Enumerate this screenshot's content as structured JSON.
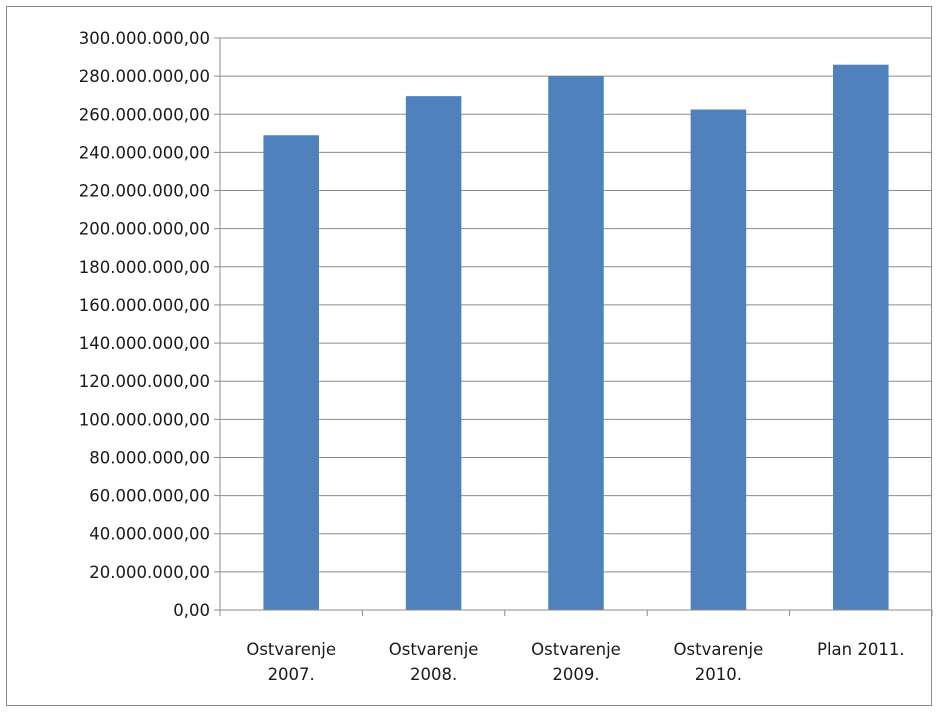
{
  "chart_data": {
    "type": "bar",
    "title": "",
    "xlabel": "",
    "ylabel": "",
    "categories": [
      [
        "Ostvarenje",
        "2007."
      ],
      [
        "Ostvarenje",
        "2008."
      ],
      [
        "Ostvarenje",
        "2009."
      ],
      [
        "Ostvarenje",
        "2010."
      ],
      [
        "Plan 2011."
      ]
    ],
    "values": [
      249000000,
      269500000,
      280000000,
      262500000,
      286000000
    ],
    "ylim": [
      0,
      300000000
    ],
    "ytick_step": 20000000,
    "ytick_labels": [
      "0,00",
      "20.000.000,00",
      "40.000.000,00",
      "60.000.000,00",
      "80.000.000,00",
      "100.000.000,00",
      "120.000.000,00",
      "140.000.000,00",
      "160.000.000,00",
      "180.000.000,00",
      "200.000.000,00",
      "220.000.000,00",
      "240.000.000,00",
      "260.000.000,00",
      "280.000.000,00",
      "300.000.000,00"
    ],
    "grid": true,
    "legend": "none",
    "bar_color": "#4f81bd",
    "grid_color": "#8c8c8c"
  }
}
